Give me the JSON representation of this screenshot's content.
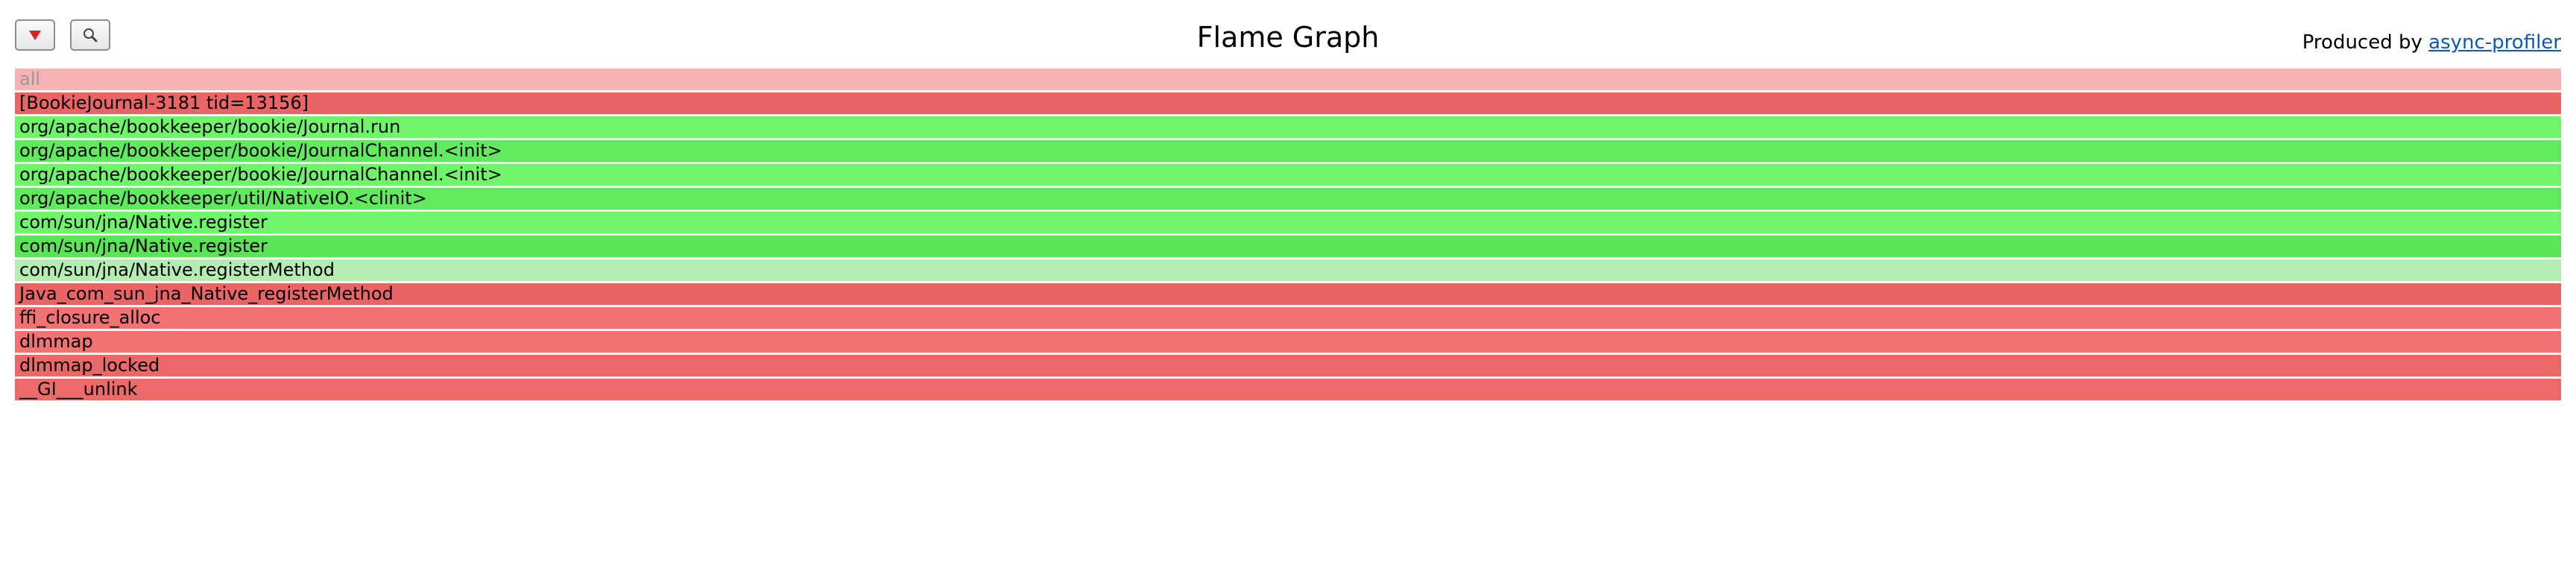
{
  "toolbar": {
    "reverse_icon": "reverse-arrow-icon",
    "search_icon": "magnifier-icon"
  },
  "header": {
    "title": "Flame Graph",
    "produced_by_prefix": "Produced by ",
    "produced_by_link": "async-profiler"
  },
  "frames": [
    {
      "label": "all",
      "color": "#f5b3b3",
      "text_color": "#9a9a9a"
    },
    {
      "label": "[BookieJournal-3181 tid=13156]",
      "color": "#e96565",
      "text_color": "#000000"
    },
    {
      "label": "org/apache/bookkeeper/bookie/Journal.run",
      "color": "#6ff56a",
      "text_color": "#000000"
    },
    {
      "label": "org/apache/bookkeeper/bookie/JournalChannel.<init>",
      "color": "#62ea5e",
      "text_color": "#000000"
    },
    {
      "label": "org/apache/bookkeeper/bookie/JournalChannel.<init>",
      "color": "#6ff56a",
      "text_color": "#000000"
    },
    {
      "label": "org/apache/bookkeeper/util/NativeIO.<clinit>",
      "color": "#62ea5e",
      "text_color": "#000000"
    },
    {
      "label": "com/sun/jna/Native.register",
      "color": "#6ff56a",
      "text_color": "#000000"
    },
    {
      "label": "com/sun/jna/Native.register",
      "color": "#5ae456",
      "text_color": "#000000"
    },
    {
      "label": "com/sun/jna/Native.registerMethod",
      "color": "#b5ecb3",
      "text_color": "#000000"
    },
    {
      "label": "Java_com_sun_jna_Native_registerMethod",
      "color": "#e96565",
      "text_color": "#000000"
    },
    {
      "label": "ffi_closure_alloc",
      "color": "#f07272",
      "text_color": "#000000"
    },
    {
      "label": "dlmmap",
      "color": "#f07272",
      "text_color": "#000000"
    },
    {
      "label": "dlmmap_locked",
      "color": "#ea6868",
      "text_color": "#000000"
    },
    {
      "label": "__GI___unlink",
      "color": "#ec6a6a",
      "text_color": "#000000"
    }
  ]
}
